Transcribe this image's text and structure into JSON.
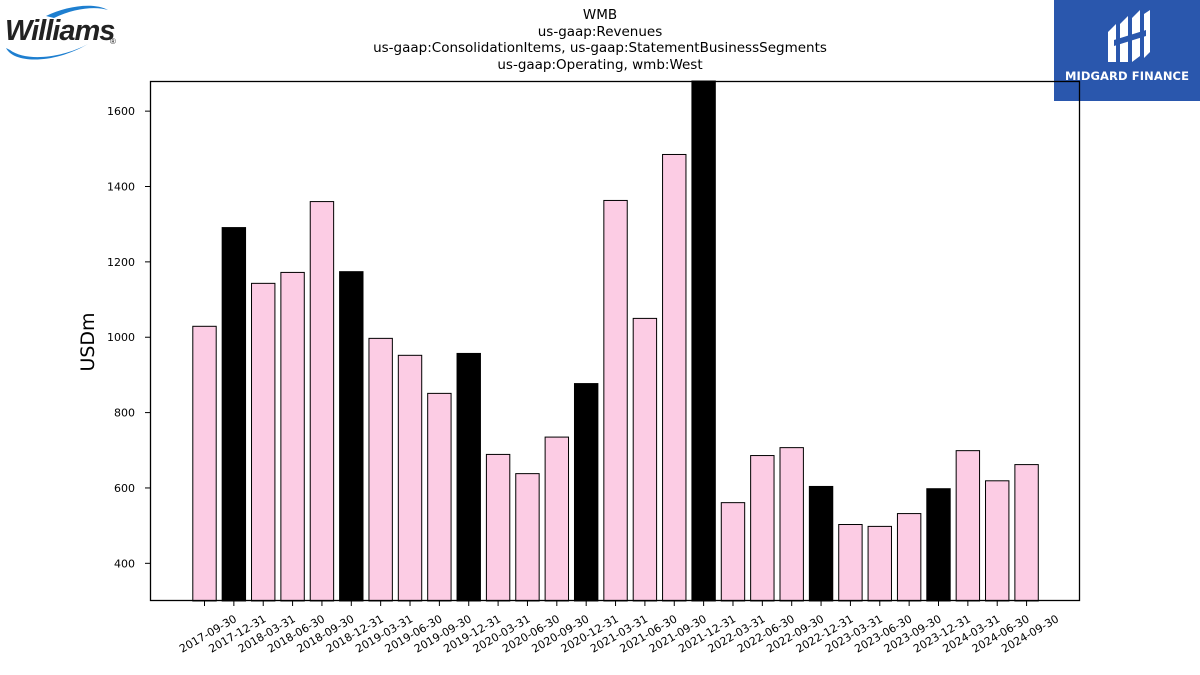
{
  "header": {
    "title_lines": [
      "WMB",
      "us-gaap:Revenues",
      "us-gaap:ConsolidationItems, us-gaap:StatementBusinessSegments",
      "us-gaap:Operating, wmb:West"
    ]
  },
  "logos": {
    "left_text": "Williams",
    "left_mark": "®",
    "right_text": "MIDGARD FINANCE"
  },
  "colors": {
    "quarter_bar": "#fccce4",
    "year_end_bar": "#000000",
    "logo_blue": "#2a57ad",
    "williams_swoosh": "#1e7fd0"
  },
  "chart_data": {
    "type": "bar",
    "ylabel": "USDm",
    "xlabel": "",
    "ylim": [
      300,
      1680
    ],
    "yticks": [
      400,
      600,
      800,
      1000,
      1200,
      1400,
      1600
    ],
    "grid": false,
    "categories": [
      "2017-09-30",
      "2017-12-31",
      "2018-03-31",
      "2018-06-30",
      "2018-09-30",
      "2018-12-31",
      "2019-03-31",
      "2019-06-30",
      "2019-09-30",
      "2019-12-31",
      "2020-03-31",
      "2020-06-30",
      "2020-09-30",
      "2020-12-31",
      "2021-03-31",
      "2021-06-30",
      "2021-09-30",
      "2021-12-31",
      "2022-03-31",
      "2022-06-30",
      "2022-09-30",
      "2022-12-31",
      "2023-03-31",
      "2023-06-30",
      "2023-09-30",
      "2023-12-31",
      "2024-03-31",
      "2024-06-30",
      "2024-09-30"
    ],
    "values": [
      1029,
      1291,
      1143,
      1172,
      1360,
      1174,
      997,
      952,
      851,
      957,
      689,
      638,
      735,
      877,
      1363,
      1050,
      1485,
      1680,
      561,
      686,
      707,
      604,
      503,
      498,
      532,
      598,
      699,
      619,
      662
    ],
    "year_end": [
      false,
      true,
      false,
      false,
      false,
      true,
      false,
      false,
      false,
      true,
      false,
      false,
      false,
      true,
      false,
      false,
      false,
      true,
      false,
      false,
      false,
      true,
      false,
      false,
      false,
      true,
      false,
      false,
      false
    ]
  }
}
